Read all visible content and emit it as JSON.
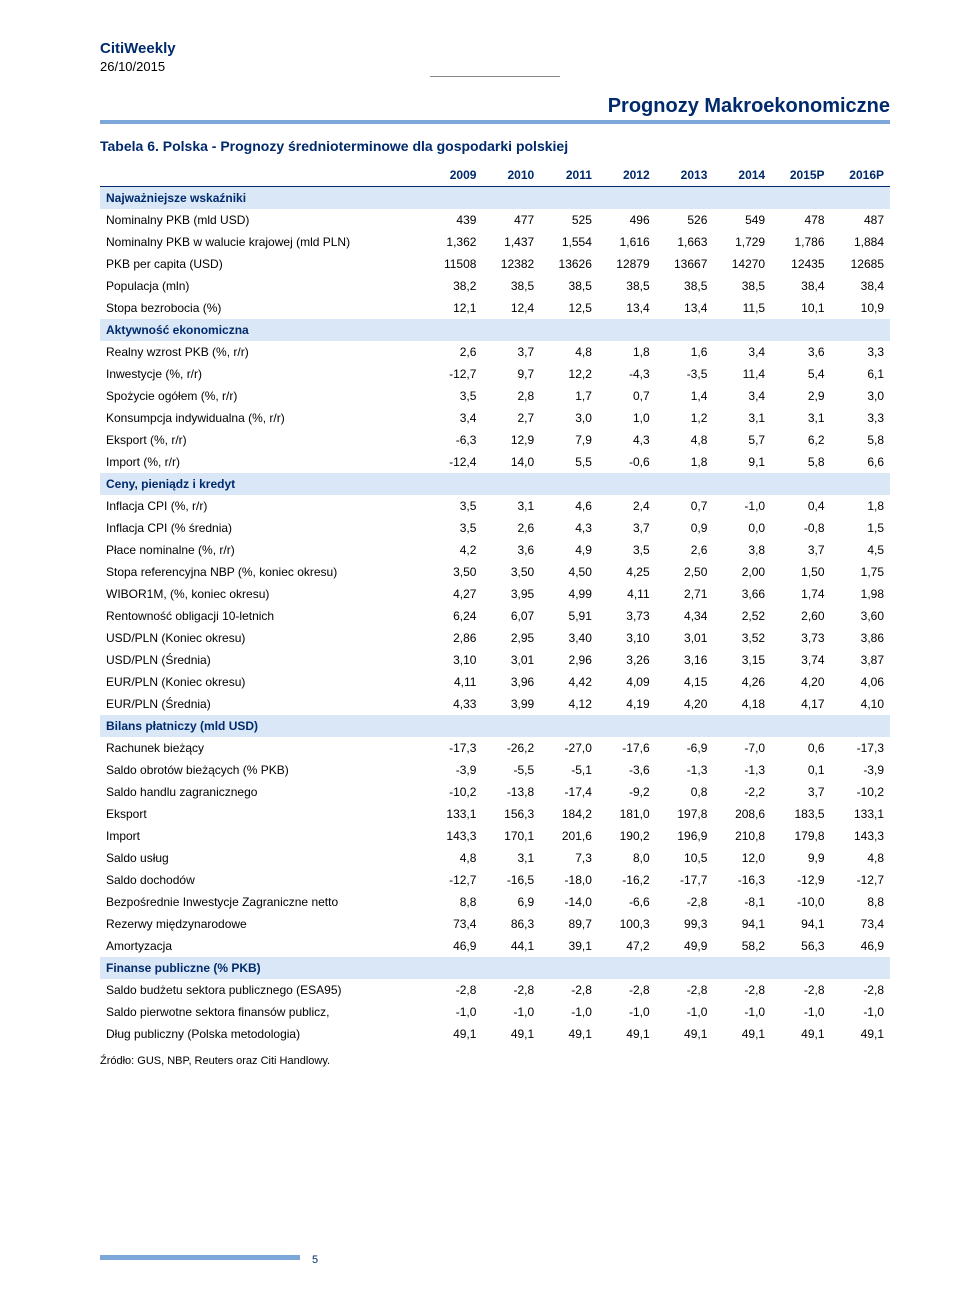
{
  "header": {
    "brand": "CitiWeekly",
    "date": "26/10/2015"
  },
  "title": "Prognozy Makroekonomiczne",
  "table": {
    "caption": "Tabela 6. Polska - Prognozy średnioterminowe dla gospodarki polskiej",
    "columns": [
      "",
      "2009",
      "2010",
      "2011",
      "2012",
      "2013",
      "2014",
      "2015P",
      "2016P"
    ],
    "sections": [
      {
        "header": "Najważniejsze wskaźniki",
        "rows": [
          [
            "Nominalny PKB (mld USD)",
            "439",
            "477",
            "525",
            "496",
            "526",
            "549",
            "478",
            "487"
          ],
          [
            "Nominalny PKB w walucie krajowej (mld PLN)",
            "1,362",
            "1,437",
            "1,554",
            "1,616",
            "1,663",
            "1,729",
            "1,786",
            "1,884"
          ],
          [
            "PKB per capita (USD)",
            "11508",
            "12382",
            "13626",
            "12879",
            "13667",
            "14270",
            "12435",
            "12685"
          ],
          [
            "Populacja (mln)",
            "38,2",
            "38,5",
            "38,5",
            "38,5",
            "38,5",
            "38,5",
            "38,4",
            "38,4"
          ],
          [
            "Stopa bezrobocia (%)",
            "12,1",
            "12,4",
            "12,5",
            "13,4",
            "13,4",
            "11,5",
            "10,1",
            "10,9"
          ]
        ]
      },
      {
        "header": "Aktywność ekonomiczna",
        "rows": [
          [
            "Realny wzrost PKB (%, r/r)",
            "2,6",
            "3,7",
            "4,8",
            "1,8",
            "1,6",
            "3,4",
            "3,6",
            "3,3"
          ],
          [
            "Inwestycje (%, r/r)",
            "-12,7",
            "9,7",
            "12,2",
            "-4,3",
            "-3,5",
            "11,4",
            "5,4",
            "6,1"
          ],
          [
            "Spożycie ogółem (%, r/r)",
            "3,5",
            "2,8",
            "1,7",
            "0,7",
            "1,4",
            "3,4",
            "2,9",
            "3,0"
          ],
          [
            "Konsumpcja indywidualna (%, r/r)",
            "3,4",
            "2,7",
            "3,0",
            "1,0",
            "1,2",
            "3,1",
            "3,1",
            "3,3"
          ],
          [
            "Eksport (%, r/r)",
            "-6,3",
            "12,9",
            "7,9",
            "4,3",
            "4,8",
            "5,7",
            "6,2",
            "5,8"
          ],
          [
            "Import (%, r/r)",
            "-12,4",
            "14,0",
            "5,5",
            "-0,6",
            "1,8",
            "9,1",
            "5,8",
            "6,6"
          ]
        ]
      },
      {
        "header": "Ceny, pieniądz i kredyt",
        "rows": [
          [
            "Inflacja CPI (%, r/r)",
            "3,5",
            "3,1",
            "4,6",
            "2,4",
            "0,7",
            "-1,0",
            "0,4",
            "1,8"
          ],
          [
            "Inflacja CPI (% średnia)",
            "3,5",
            "2,6",
            "4,3",
            "3,7",
            "0,9",
            "0,0",
            "-0,8",
            "1,5"
          ],
          [
            "Płace nominalne (%, r/r)",
            "4,2",
            "3,6",
            "4,9",
            "3,5",
            "2,6",
            "3,8",
            "3,7",
            "4,5"
          ],
          [
            "Stopa referencyjna NBP (%, koniec okresu)",
            "3,50",
            "3,50",
            "4,50",
            "4,25",
            "2,50",
            "2,00",
            "1,50",
            "1,75"
          ],
          [
            "WIBOR1M, (%, koniec okresu)",
            "4,27",
            "3,95",
            "4,99",
            "4,11",
            "2,71",
            "3,66",
            "1,74",
            "1,98"
          ],
          [
            "Rentowność obligacji 10-letnich",
            "6,24",
            "6,07",
            "5,91",
            "3,73",
            "4,34",
            "2,52",
            "2,60",
            "3,60"
          ],
          [
            "USD/PLN (Koniec okresu)",
            "2,86",
            "2,95",
            "3,40",
            "3,10",
            "3,01",
            "3,52",
            "3,73",
            "3,86"
          ],
          [
            "USD/PLN (Średnia)",
            "3,10",
            "3,01",
            "2,96",
            "3,26",
            "3,16",
            "3,15",
            "3,74",
            "3,87"
          ],
          [
            "EUR/PLN (Koniec okresu)",
            "4,11",
            "3,96",
            "4,42",
            "4,09",
            "4,15",
            "4,26",
            "4,20",
            "4,06"
          ],
          [
            "EUR/PLN (Średnia)",
            "4,33",
            "3,99",
            "4,12",
            "4,19",
            "4,20",
            "4,18",
            "4,17",
            "4,10"
          ]
        ]
      },
      {
        "header": "Bilans płatniczy (mld USD)",
        "rows": [
          [
            "Rachunek bieżący",
            "-17,3",
            "-26,2",
            "-27,0",
            "-17,6",
            "-6,9",
            "-7,0",
            "0,6",
            "-17,3"
          ],
          [
            "Saldo obrotów bieżących (% PKB)",
            "-3,9",
            "-5,5",
            "-5,1",
            "-3,6",
            "-1,3",
            "-1,3",
            "0,1",
            "-3,9"
          ],
          [
            "Saldo handlu zagranicznego",
            "-10,2",
            "-13,8",
            "-17,4",
            "-9,2",
            "0,8",
            "-2,2",
            "3,7",
            "-10,2"
          ],
          [
            "Eksport",
            "133,1",
            "156,3",
            "184,2",
            "181,0",
            "197,8",
            "208,6",
            "183,5",
            "133,1"
          ],
          [
            "Import",
            "143,3",
            "170,1",
            "201,6",
            "190,2",
            "196,9",
            "210,8",
            "179,8",
            "143,3"
          ],
          [
            "Saldo usług",
            "4,8",
            "3,1",
            "7,3",
            "8,0",
            "10,5",
            "12,0",
            "9,9",
            "4,8"
          ],
          [
            "Saldo dochodów",
            "-12,7",
            "-16,5",
            "-18,0",
            "-16,2",
            "-17,7",
            "-16,3",
            "-12,9",
            "-12,7"
          ],
          [
            "Bezpośrednie Inwestycje Zagraniczne netto",
            "8,8",
            "6,9",
            "-14,0",
            "-6,6",
            "-2,8",
            "-8,1",
            "-10,0",
            "8,8"
          ],
          [
            "Rezerwy międzynarodowe",
            "73,4",
            "86,3",
            "89,7",
            "100,3",
            "99,3",
            "94,1",
            "94,1",
            "73,4"
          ],
          [
            "Amortyzacja",
            "46,9",
            "44,1",
            "39,1",
            "47,2",
            "49,9",
            "58,2",
            "56,3",
            "46,9"
          ]
        ]
      },
      {
        "header": "Finanse publiczne (% PKB)",
        "rows": [
          [
            "Saldo budżetu sektora publicznego (ESA95)",
            "-2,8",
            "-2,8",
            "-2,8",
            "-2,8",
            "-2,8",
            "-2,8",
            "-2,8",
            "-2,8"
          ],
          [
            "Saldo pierwotne sektora finansów publicz,",
            "-1,0",
            "-1,0",
            "-1,0",
            "-1,0",
            "-1,0",
            "-1,0",
            "-1,0",
            "-1,0"
          ],
          [
            "Dług publiczny (Polska metodologia)",
            "49,1",
            "49,1",
            "49,1",
            "49,1",
            "49,1",
            "49,1",
            "49,1",
            "49,1"
          ]
        ]
      }
    ],
    "source": "Źródło: GUS, NBP, Reuters oraz Citi Handlowy."
  },
  "page_number": "5",
  "colors": {
    "brand": "#002a6c",
    "accent_bar": "#7da7d9",
    "section_bg": "#d9e7f7",
    "background": "#ffffff"
  }
}
